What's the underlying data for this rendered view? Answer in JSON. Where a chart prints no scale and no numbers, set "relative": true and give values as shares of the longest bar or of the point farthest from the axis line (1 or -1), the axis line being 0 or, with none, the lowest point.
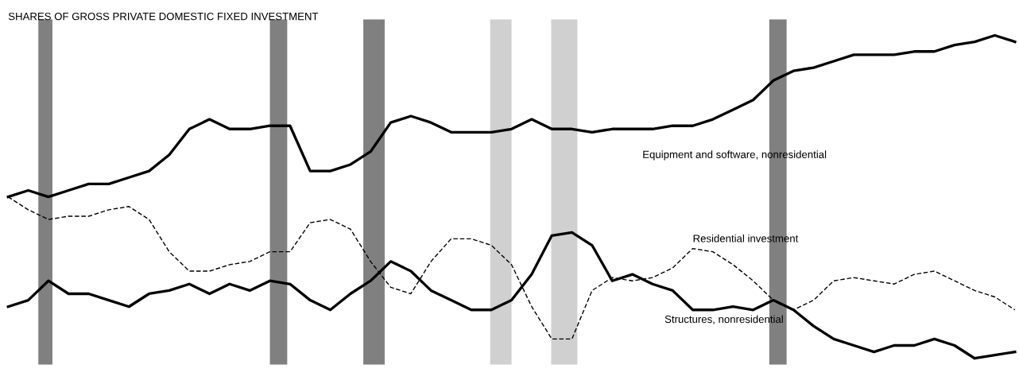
{
  "chart_data": {
    "type": "line",
    "title": "SHARES OF GROSS PRIVATE DOMESTIC FIXED INVESTMENT",
    "relative": true,
    "categories": [
      null,
      null,
      null,
      null,
      null,
      null,
      null,
      null,
      null,
      null,
      null,
      null,
      null,
      null,
      null,
      null,
      null,
      null,
      null,
      null,
      null,
      null,
      null,
      null,
      null,
      null,
      null,
      null,
      null,
      null,
      null,
      null,
      null,
      null,
      null,
      null,
      null,
      null,
      null,
      null,
      null,
      null,
      null,
      null,
      null,
      null,
      null,
      null,
      null,
      null,
      null
    ],
    "series": [
      {
        "name": "Equipment and software, nonresidential",
        "color": "#000000",
        "line_style": "solid",
        "values": [
          0.5,
          0.52,
          0.5,
          0.52,
          0.54,
          0.54,
          0.56,
          0.58,
          0.63,
          0.71,
          0.74,
          0.71,
          0.71,
          0.72,
          0.72,
          0.58,
          0.58,
          0.6,
          0.64,
          0.73,
          0.75,
          0.73,
          0.7,
          0.7,
          0.7,
          0.71,
          0.74,
          0.71,
          0.71,
          0.7,
          0.71,
          0.71,
          0.71,
          0.72,
          0.72,
          0.74,
          0.77,
          0.8,
          0.86,
          0.89,
          0.9,
          0.92,
          0.94,
          0.94,
          0.94,
          0.95,
          0.95,
          0.97,
          0.98,
          1,
          0.98
        ]
      },
      {
        "name": "Residential investment",
        "color": "#000000",
        "line_style": "dashed",
        "values": [
          0.5,
          0.46,
          0.43,
          0.44,
          0.44,
          0.46,
          0.47,
          0.43,
          0.33,
          0.27,
          0.27,
          0.29,
          0.3,
          0.33,
          0.33,
          0.42,
          0.43,
          0.4,
          0.3,
          0.22,
          0.2,
          0.3,
          0.37,
          0.37,
          0.35,
          0.29,
          0.16,
          0.06,
          0.06,
          0.21,
          0.25,
          0.24,
          0.25,
          0.28,
          0.34,
          0.33,
          0.29,
          0.24,
          0.18,
          0.15,
          0.18,
          0.24,
          0.25,
          0.24,
          0.23,
          0.26,
          0.27,
          0.24,
          0.21,
          0.19,
          0.15
        ]
      },
      {
        "name": "Structures, nonresidential",
        "color": "#000000",
        "line_style": "solid",
        "values": [
          0.16,
          0.18,
          0.24,
          0.2,
          0.2,
          0.18,
          0.16,
          0.2,
          0.21,
          0.23,
          0.2,
          0.23,
          0.21,
          0.24,
          0.23,
          0.18,
          0.15,
          0.2,
          0.24,
          0.3,
          0.27,
          0.21,
          0.18,
          0.15,
          0.15,
          0.18,
          0.26,
          0.38,
          0.39,
          0.35,
          0.24,
          0.26,
          0.23,
          0.21,
          0.15,
          0.15,
          0.16,
          0.15,
          0.18,
          0.15,
          0.1,
          0.06,
          0.04,
          0.02,
          0.04,
          0.04,
          0.06,
          0.04,
          0,
          0.01,
          0.02
        ]
      }
    ],
    "grid": false,
    "legend": false,
    "marker": "none"
  }
}
